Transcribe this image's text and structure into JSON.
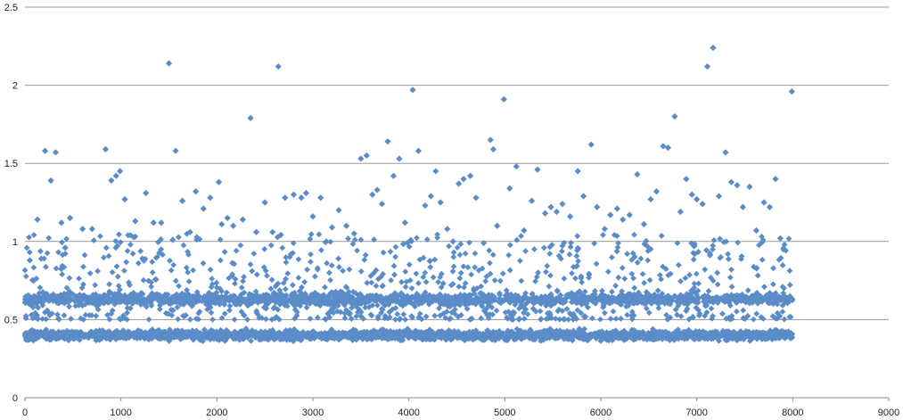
{
  "chart_data": {
    "type": "scatter",
    "title": "",
    "xlabel": "",
    "ylabel": "",
    "xlim": [
      0,
      9000
    ],
    "ylim": [
      0,
      2.5
    ],
    "x_ticks": [
      "0",
      "1000",
      "2000",
      "3000",
      "4000",
      "5000",
      "6000",
      "7000",
      "8000",
      "9000"
    ],
    "y_ticks": [
      "0",
      "0.5",
      "1",
      "1.5",
      "2",
      "2.5"
    ],
    "grid": "horizontal",
    "legend": "none",
    "marker_color": "#5b8cc8",
    "marker": "diamond",
    "series": [
      {
        "x_range": [
          0,
          8000
        ],
        "description_bands": [
          0.4,
          0.63
        ],
        "points": [
          [
            50,
            0.88
          ],
          [
            90,
            0.75
          ],
          [
            130,
            1.14
          ],
          [
            170,
            0.89
          ],
          [
            210,
            1.58
          ],
          [
            270,
            1.39
          ],
          [
            320,
            1.57
          ],
          [
            380,
            1.12
          ],
          [
            420,
            0.96
          ],
          [
            470,
            1.15
          ],
          [
            600,
            1.08
          ],
          [
            700,
            1.08
          ],
          [
            840,
            1.59
          ],
          [
            900,
            1.39
          ],
          [
            950,
            1.42
          ],
          [
            990,
            1.45
          ],
          [
            1040,
            1.27
          ],
          [
            1100,
            1.04
          ],
          [
            1150,
            1.13
          ],
          [
            1260,
            1.31
          ],
          [
            1340,
            1.12
          ],
          [
            1420,
            1.12
          ],
          [
            1500,
            2.14
          ],
          [
            1540,
            1.01
          ],
          [
            1570,
            1.58
          ],
          [
            1640,
            1.26
          ],
          [
            1720,
            1.06
          ],
          [
            1780,
            1.32
          ],
          [
            1860,
            1.21
          ],
          [
            1930,
            1.28
          ],
          [
            2020,
            1.38
          ],
          [
            2050,
            1.11
          ],
          [
            2110,
            1.15
          ],
          [
            2170,
            1.1
          ],
          [
            2270,
            1.14
          ],
          [
            2350,
            1.79
          ],
          [
            2410,
            1.06
          ],
          [
            2500,
            1.25
          ],
          [
            2580,
            1.06
          ],
          [
            2640,
            2.12
          ],
          [
            2710,
            1.28
          ],
          [
            2800,
            1.3
          ],
          [
            2880,
            1.28
          ],
          [
            2930,
            1.31
          ],
          [
            3000,
            1.16
          ],
          [
            3080,
            1.28
          ],
          [
            3140,
            1.0
          ],
          [
            3200,
            1.09
          ],
          [
            3270,
            1.2
          ],
          [
            3350,
            1.1
          ],
          [
            3430,
            1.05
          ],
          [
            3500,
            1.53
          ],
          [
            3560,
            1.55
          ],
          [
            3620,
            1.3
          ],
          [
            3670,
            1.33
          ],
          [
            3720,
            1.24
          ],
          [
            3780,
            1.64
          ],
          [
            3840,
            1.42
          ],
          [
            3900,
            1.53
          ],
          [
            3960,
            1.12
          ],
          [
            4040,
            1.97
          ],
          [
            4100,
            1.58
          ],
          [
            4170,
            1.23
          ],
          [
            4230,
            1.29
          ],
          [
            4280,
            1.45
          ],
          [
            4330,
            1.25
          ],
          [
            4400,
            1.08
          ],
          [
            4460,
            1.0
          ],
          [
            4520,
            1.37
          ],
          [
            4570,
            1.4
          ],
          [
            4640,
            1.42
          ],
          [
            4700,
            1.28
          ],
          [
            4780,
            0.99
          ],
          [
            4850,
            1.65
          ],
          [
            4880,
            1.59
          ],
          [
            4920,
            1.1
          ],
          [
            4990,
            1.91
          ],
          [
            5050,
            1.34
          ],
          [
            5120,
            1.48
          ],
          [
            5200,
            1.07
          ],
          [
            5280,
            1.26
          ],
          [
            5340,
            1.46
          ],
          [
            5420,
            1.18
          ],
          [
            5480,
            1.22
          ],
          [
            5540,
            1.19
          ],
          [
            5600,
            1.24
          ],
          [
            5680,
            1.16
          ],
          [
            5760,
            1.45
          ],
          [
            5820,
            1.29
          ],
          [
            5900,
            1.62
          ],
          [
            5960,
            1.22
          ],
          [
            6040,
            1.08
          ],
          [
            6100,
            1.17
          ],
          [
            6170,
            1.21
          ],
          [
            6230,
            1.14
          ],
          [
            6300,
            1.17
          ],
          [
            6380,
            1.43
          ],
          [
            6450,
            1.11
          ],
          [
            6520,
            1.27
          ],
          [
            6580,
            1.32
          ],
          [
            6650,
            1.61
          ],
          [
            6700,
            1.6
          ],
          [
            6770,
            1.8
          ],
          [
            6830,
            1.19
          ],
          [
            6890,
            1.4
          ],
          [
            6950,
            1.3
          ],
          [
            7000,
            1.27
          ],
          [
            7060,
            1.24
          ],
          [
            7110,
            2.12
          ],
          [
            7170,
            2.24
          ],
          [
            7230,
            1.29
          ],
          [
            7300,
            1.57
          ],
          [
            7360,
            1.38
          ],
          [
            7420,
            1.36
          ],
          [
            7480,
            1.22
          ],
          [
            7550,
            1.35
          ],
          [
            7620,
            1.07
          ],
          [
            7700,
            1.25
          ],
          [
            7760,
            1.22
          ],
          [
            7820,
            1.4
          ],
          [
            7870,
            1.02
          ],
          [
            7990,
            1.96
          ]
        ]
      }
    ]
  }
}
